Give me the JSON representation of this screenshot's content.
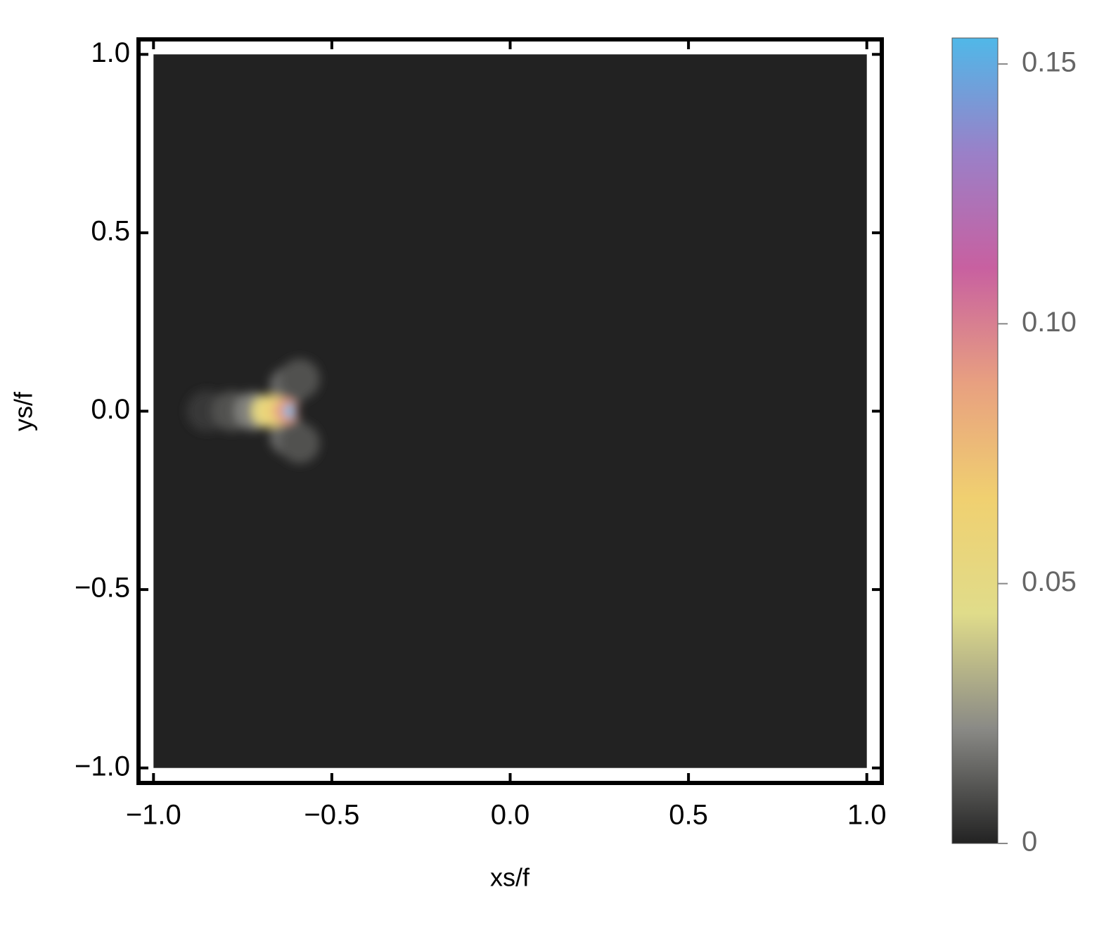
{
  "chart_data": {
    "type": "density",
    "xlabel": "xs/f",
    "ylabel": "ys/f",
    "xlim": [
      -1.042,
      1.042
    ],
    "ylim": [
      -1.042,
      1.042
    ],
    "xticks": [
      {
        "value": -1,
        "label": "−1.0"
      },
      {
        "value": -0.5,
        "label": "−0.5"
      },
      {
        "value": 0,
        "label": "0.0"
      },
      0.5,
      {
        "value": 1,
        "label": "1.0"
      }
    ],
    "yticks": [
      {
        "value": -1,
        "label": "−1.0"
      },
      {
        "value": -0.5,
        "label": "−0.5"
      },
      {
        "value": 0,
        "label": "0.0"
      },
      0.5,
      {
        "value": 1,
        "label": "1.0"
      }
    ],
    "background": "#222222",
    "points": {
      "x": [
        -0.85,
        -0.78,
        -0.72,
        -0.62,
        -0.62,
        -0.59,
        -0.59,
        -0.68,
        -0.66,
        -0.63,
        -0.62
      ],
      "y": [
        0,
        0,
        0,
        0.07,
        -0.07,
        0.09,
        -0.09,
        0,
        0,
        0,
        0
      ],
      "values": [
        0.005,
        0.01,
        0.02,
        0.015,
        0.015,
        0.01,
        0.01,
        0.05,
        0.06,
        0.09,
        0.155
      ]
    },
    "colorbar": {
      "clim": [
        0,
        0.155
      ],
      "ticks": [
        0,
        0.05,
        {
          "value": 0.1,
          "label": "0.10"
        },
        0.15
      ],
      "colormap": [
        "#222222",
        "#8a8a86",
        "#e0dc8a",
        "#f0d070",
        "#e8a080",
        "#c860a0",
        "#9a80c8",
        "#50b8e8"
      ]
    }
  }
}
